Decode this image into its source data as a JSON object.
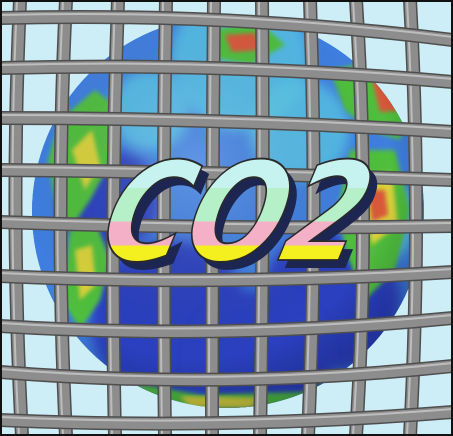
{
  "artwork": {
    "logo_text": "CO2",
    "colors": {
      "sky": "#cdeef7",
      "frame_border": "#111111",
      "grid_bar": "#8d8d8d",
      "grid_bar_light": "#bdbdbd",
      "grid_bar_dark": "#4e4e4e",
      "ocean_deep": "#2a3fc0",
      "ocean_mid": "#3f7fe0",
      "ocean_light": "#58c8e8",
      "land_green": "#4fbf3c",
      "land_yellow": "#d9d23a",
      "land_red": "#d9583a",
      "logo_band_1": "#c6f3ef",
      "logo_band_2": "#b5f0c8",
      "logo_band_3": "#f3b0c6",
      "logo_band_4": "#f4ef1e",
      "logo_band_5": "#e22020",
      "logo_band_6": "#5262d6",
      "logo_shadow": "#1d2650"
    }
  }
}
